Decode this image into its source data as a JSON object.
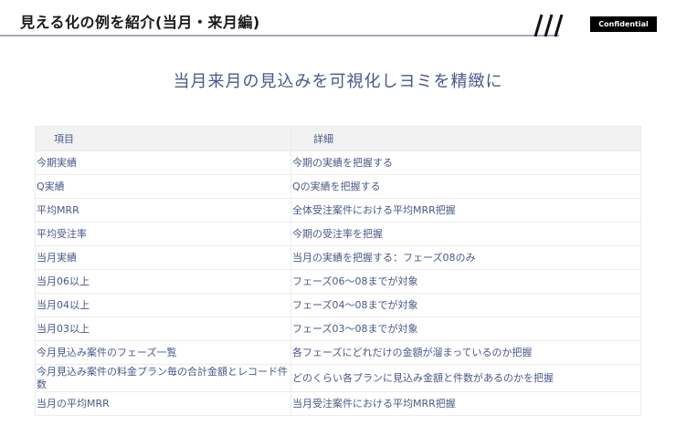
{
  "header": {
    "title": "見える化の例を紹介(当月・来月編)",
    "badge": "Confidential"
  },
  "subtitle": "当月来月の見込みを可視化しヨミを精緻に",
  "table": {
    "columns": [
      "項目",
      "詳細"
    ],
    "rows": [
      [
        "今期実績",
        "今期の実績を把握する"
      ],
      [
        "Q実績",
        "Qの実績を把握する"
      ],
      [
        "平均MRR",
        "全体受注案件における平均MRR把握"
      ],
      [
        "平均受注率",
        "今期の受注率を把握"
      ],
      [
        "当月実績",
        "当月の実績を把握する：フェーズ08のみ"
      ],
      [
        "当月06以上",
        "フェーズ06〜08までが対象"
      ],
      [
        "当月04以上",
        "フェーズ04〜08までが対象"
      ],
      [
        "当月03以上",
        "フェーズ03〜08までが対象"
      ],
      [
        "今月見込み案件のフェーズ一覧",
        "各フェーズにどれだけの金額が溜まっているのか把握"
      ],
      [
        "今月見込み案件の料金プラン毎の合計金額とレコード件数",
        "どのくらい各プランに見込み金額と件数があるのかを把握"
      ],
      [
        "当月の平均MRR",
        "当月受注案件における平均MRR把握"
      ]
    ]
  }
}
